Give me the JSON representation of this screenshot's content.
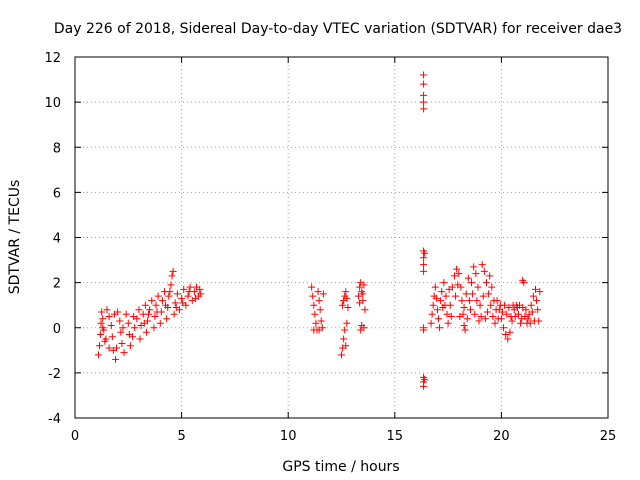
{
  "chart_data": {
    "type": "scatter",
    "title": "Day 226 of 2018, Sidereal Day-to-day VTEC variation (SDTVAR) for receiver dae3",
    "xlabel": "GPS time / hours",
    "ylabel": "SDTVAR / TECUs",
    "xlim": [
      0,
      25
    ],
    "ylim": [
      -4,
      12
    ],
    "xticks": [
      0,
      5,
      10,
      15,
      20,
      25
    ],
    "yticks": [
      -4,
      -2,
      0,
      2,
      4,
      6,
      8,
      10,
      12
    ],
    "grid": true,
    "marker": "plus",
    "color": "#ff0000",
    "series": [
      {
        "points": [
          [
            1.1,
            -1.2
          ],
          [
            1.15,
            -0.8
          ],
          [
            1.2,
            -0.3
          ],
          [
            1.22,
            0.2
          ],
          [
            1.25,
            0.7
          ],
          [
            1.3,
            0.4
          ],
          [
            1.35,
            -0.1
          ],
          [
            1.4,
            -0.6
          ],
          [
            1.5,
            0.8
          ],
          [
            1.6,
            0.5
          ],
          [
            1.7,
            0.1
          ],
          [
            1.75,
            -0.4
          ],
          [
            1.8,
            -1.0
          ],
          [
            1.9,
            -1.4
          ],
          [
            1.95,
            -0.9
          ],
          [
            2.0,
            0.7
          ],
          [
            2.1,
            0.3
          ],
          [
            2.15,
            -0.2
          ],
          [
            2.2,
            -0.7
          ],
          [
            2.3,
            -1.1
          ],
          [
            2.4,
            0.6
          ],
          [
            2.5,
            0.2
          ],
          [
            2.55,
            -0.3
          ],
          [
            2.6,
            -0.8
          ],
          [
            2.7,
            -0.4
          ],
          [
            2.8,
            0.0
          ],
          [
            2.9,
            0.4
          ],
          [
            3.0,
            0.8
          ],
          [
            3.05,
            -0.5
          ],
          [
            3.1,
            0.1
          ],
          [
            3.2,
            0.6
          ],
          [
            3.3,
            1.0
          ],
          [
            3.35,
            -0.2
          ],
          [
            3.4,
            0.3
          ],
          [
            3.5,
            0.8
          ],
          [
            3.6,
            1.2
          ],
          [
            3.7,
            0.0
          ],
          [
            3.75,
            0.5
          ],
          [
            3.8,
            1.0
          ],
          [
            3.9,
            1.4
          ],
          [
            4.0,
            0.2
          ],
          [
            4.05,
            0.7
          ],
          [
            4.1,
            1.2
          ],
          [
            4.2,
            1.6
          ],
          [
            4.3,
            0.4
          ],
          [
            4.35,
            0.9
          ],
          [
            4.4,
            1.4
          ],
          [
            4.5,
            1.9
          ],
          [
            4.55,
            2.3
          ],
          [
            4.6,
            2.5
          ],
          [
            4.65,
            0.6
          ],
          [
            4.7,
            1.1
          ],
          [
            4.8,
            1.5
          ],
          [
            4.9,
            0.8
          ],
          [
            5.0,
            1.3
          ],
          [
            5.1,
            1.7
          ],
          [
            5.2,
            1.0
          ],
          [
            5.3,
            1.4
          ],
          [
            5.4,
            1.8
          ],
          [
            5.5,
            1.2
          ],
          [
            5.6,
            1.6
          ],
          [
            5.7,
            1.8
          ],
          [
            5.8,
            1.4
          ],
          [
            5.85,
            1.7
          ],
          [
            5.9,
            1.5
          ],
          [
            1.3,
            0.0
          ],
          [
            1.45,
            -0.5
          ],
          [
            2.25,
            0.0
          ],
          [
            2.75,
            0.5
          ],
          [
            3.25,
            0.2
          ],
          [
            3.45,
            0.6
          ],
          [
            3.85,
            0.7
          ],
          [
            4.25,
            1.0
          ],
          [
            4.45,
            1.6
          ],
          [
            4.75,
            0.9
          ],
          [
            5.05,
            1.1
          ],
          [
            5.35,
            1.6
          ],
          [
            5.65,
            1.3
          ],
          [
            1.85,
            0.6
          ],
          [
            1.6,
            -0.9
          ]
        ]
      },
      {
        "points": [
          [
            11.1,
            1.8
          ],
          [
            11.15,
            1.4
          ],
          [
            11.2,
            1.0
          ],
          [
            11.25,
            0.6
          ],
          [
            11.3,
            0.2
          ],
          [
            11.35,
            -0.1
          ],
          [
            11.4,
            1.6
          ],
          [
            11.45,
            1.2
          ],
          [
            11.5,
            0.8
          ],
          [
            11.55,
            0.3
          ],
          [
            11.6,
            0.0
          ],
          [
            11.65,
            1.5
          ],
          [
            11.2,
            -0.1
          ],
          [
            11.45,
            -0.1
          ],
          [
            12.5,
            -1.2
          ],
          [
            12.55,
            -0.9
          ],
          [
            12.6,
            -0.5
          ],
          [
            12.65,
            -0.1
          ],
          [
            12.55,
            1.0
          ],
          [
            12.6,
            1.2
          ],
          [
            12.65,
            1.4
          ],
          [
            12.7,
            1.6
          ],
          [
            12.75,
            1.3
          ],
          [
            12.8,
            0.9
          ],
          [
            12.7,
            -0.8
          ],
          [
            12.75,
            0.2
          ],
          [
            13.3,
            1.4
          ],
          [
            13.35,
            1.8
          ],
          [
            13.4,
            2.0
          ],
          [
            13.45,
            1.6
          ],
          [
            13.5,
            1.2
          ],
          [
            13.55,
            1.9
          ],
          [
            13.6,
            0.8
          ],
          [
            13.4,
            -0.1
          ],
          [
            13.45,
            0.1
          ],
          [
            13.55,
            0.0
          ],
          [
            13.35,
            1.1
          ],
          [
            13.5,
            1.5
          ]
        ]
      },
      {
        "points": [
          [
            16.35,
            11.2
          ],
          [
            16.35,
            10.8
          ],
          [
            16.35,
            10.3
          ],
          [
            16.35,
            10.0
          ],
          [
            16.35,
            9.7
          ],
          [
            16.35,
            3.4
          ],
          [
            16.35,
            3.1
          ],
          [
            16.35,
            2.8
          ],
          [
            16.35,
            2.5
          ],
          [
            16.35,
            0.0
          ],
          [
            16.35,
            -0.1
          ],
          [
            16.35,
            -2.2
          ],
          [
            16.35,
            -2.4
          ],
          [
            16.35,
            -2.6
          ],
          [
            16.4,
            3.3
          ],
          [
            16.4,
            -2.3
          ]
        ]
      },
      {
        "points": [
          [
            16.7,
            0.2
          ],
          [
            16.75,
            0.6
          ],
          [
            16.8,
            1.0
          ],
          [
            16.85,
            1.4
          ],
          [
            16.9,
            1.8
          ],
          [
            17.0,
            0.8
          ],
          [
            17.05,
            0.4
          ],
          [
            17.1,
            0.0
          ],
          [
            17.15,
            1.2
          ],
          [
            17.2,
            1.6
          ],
          [
            17.3,
            2.0
          ],
          [
            17.4,
            1.4
          ],
          [
            17.45,
            0.6
          ],
          [
            17.5,
            0.2
          ],
          [
            17.6,
            1.0
          ],
          [
            17.7,
            1.8
          ],
          [
            17.8,
            2.3
          ],
          [
            17.9,
            2.6
          ],
          [
            18.0,
            2.4
          ],
          [
            18.1,
            1.8
          ],
          [
            18.15,
            1.2
          ],
          [
            18.2,
            0.6
          ],
          [
            18.25,
            0.1
          ],
          [
            18.3,
            -0.1
          ],
          [
            18.4,
            0.4
          ],
          [
            18.5,
            1.2
          ],
          [
            18.6,
            2.0
          ],
          [
            18.7,
            2.7
          ],
          [
            18.8,
            2.4
          ],
          [
            18.9,
            1.8
          ],
          [
            19.0,
            1.0
          ],
          [
            19.05,
            0.5
          ],
          [
            19.1,
            2.8
          ],
          [
            19.2,
            2.5
          ],
          [
            19.3,
            2.0
          ],
          [
            19.4,
            1.5
          ],
          [
            19.5,
            1.0
          ],
          [
            19.6,
            0.5
          ],
          [
            19.7,
            0.2
          ],
          [
            19.8,
            1.2
          ],
          [
            19.9,
            0.8
          ],
          [
            20.0,
            0.4
          ],
          [
            20.1,
            0.0
          ],
          [
            20.2,
            -0.3
          ],
          [
            20.3,
            -0.5
          ],
          [
            20.4,
            -0.2
          ],
          [
            20.5,
            0.3
          ],
          [
            20.6,
            0.8
          ],
          [
            20.7,
            1.0
          ],
          [
            20.8,
            0.6
          ],
          [
            20.9,
            0.2
          ],
          [
            21.0,
            0.9
          ],
          [
            21.1,
            0.5
          ],
          [
            21.2,
            0.2
          ],
          [
            21.3,
            0.6
          ],
          [
            21.4,
            1.0
          ],
          [
            21.5,
            1.4
          ],
          [
            21.6,
            1.7
          ],
          [
            21.65,
            1.2
          ],
          [
            21.7,
            0.8
          ],
          [
            21.75,
            0.3
          ],
          [
            21.8,
            1.6
          ],
          [
            21.0,
            2.1
          ],
          [
            21.05,
            2.0
          ],
          [
            17.25,
            0.9
          ],
          [
            17.55,
            1.7
          ],
          [
            17.85,
            1.4
          ],
          [
            18.05,
            0.5
          ],
          [
            18.35,
            1.5
          ],
          [
            18.45,
            2.2
          ],
          [
            18.55,
            0.8
          ],
          [
            18.65,
            1.5
          ],
          [
            18.75,
            0.6
          ],
          [
            18.85,
            1.2
          ],
          [
            19.15,
            1.4
          ],
          [
            19.35,
            0.7
          ],
          [
            19.45,
            2.3
          ],
          [
            19.55,
            1.8
          ],
          [
            19.65,
            1.2
          ],
          [
            19.75,
            0.8
          ],
          [
            19.85,
            0.4
          ],
          [
            19.95,
            1.0
          ],
          [
            20.05,
            0.7
          ],
          [
            20.15,
            1.0
          ],
          [
            20.25,
            0.6
          ],
          [
            20.35,
            0.9
          ],
          [
            20.45,
            0.5
          ],
          [
            20.55,
            1.0
          ],
          [
            20.65,
            0.5
          ],
          [
            20.75,
            0.9
          ],
          [
            20.85,
            1.0
          ],
          [
            20.95,
            0.4
          ],
          [
            21.15,
            0.8
          ],
          [
            21.25,
            0.4
          ],
          [
            21.35,
            0.2
          ],
          [
            21.45,
            0.7
          ],
          [
            21.55,
            0.3
          ],
          [
            16.95,
            1.3
          ],
          [
            17.35,
            1.0
          ],
          [
            17.65,
            0.5
          ],
          [
            17.95,
            1.9
          ],
          [
            18.25,
            0.9
          ],
          [
            18.95,
            0.3
          ],
          [
            19.25,
            0.4
          ]
        ]
      }
    ]
  }
}
